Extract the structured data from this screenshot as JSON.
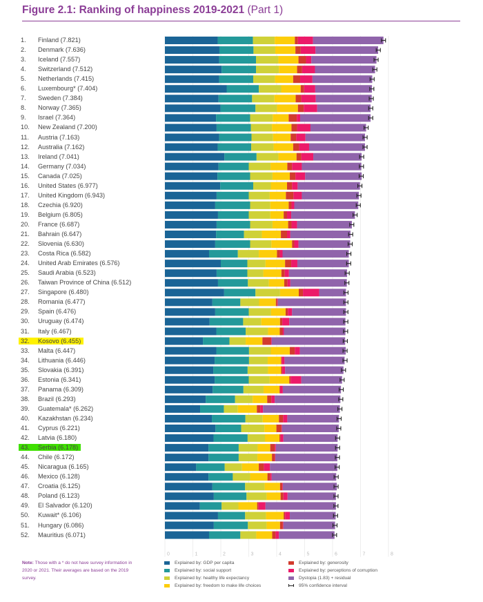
{
  "figure": {
    "title_bold": "Figure 2.1: Ranking of happiness 2019-2021",
    "title_part": "(Part 1)",
    "accent_color": "#8b3d96"
  },
  "note": {
    "label": "Note:",
    "text": "Those with a * do not have survey information in 2020 or 2021. Their averages are based on the 2019 survey."
  },
  "highlights": {
    "Kosovo": "#fff200",
    "Serbia": "#3fe000"
  },
  "chart_data": {
    "type": "bar",
    "orientation": "horizontal",
    "stacked": true,
    "title": "Figure 2.1: Ranking of happiness 2019-2021 (Part 1)",
    "xlabel": "",
    "ylabel": "",
    "xlim": [
      0,
      8
    ],
    "x_ticks": [
      "0",
      "1",
      "2",
      "3",
      "4",
      "5",
      "6",
      "7",
      "8"
    ],
    "grid": true,
    "legend_position": "bottom",
    "series": [
      {
        "name": "Explained by: GDP per capita",
        "color": "#1a6496"
      },
      {
        "name": "Explained by: social support",
        "color": "#23999a"
      },
      {
        "name": "Explained by: healthy life expectancy",
        "color": "#cfd138"
      },
      {
        "name": "Explained by: freedom to make life choices",
        "color": "#fdcd0a"
      },
      {
        "name": "Explained by: generosity",
        "color": "#d23b2d"
      },
      {
        "name": "Explained by: perceptions of corruption",
        "color": "#ec1a69"
      },
      {
        "name": "Dystopia (1.83) + residual",
        "color": "#9064ab"
      }
    ],
    "ci_legend": "95% confidence interval",
    "countries": [
      {
        "rank": "1.",
        "name": "Finland",
        "score": "7.821",
        "seg": [
          1.89,
          1.26,
          0.78,
          0.72,
          0.11,
          0.54,
          2.52
        ]
      },
      {
        "rank": "2.",
        "name": "Denmark",
        "score": "7.636",
        "seg": [
          1.95,
          1.22,
          0.78,
          0.72,
          0.19,
          0.53,
          2.24
        ]
      },
      {
        "rank": "3.",
        "name": "Iceland",
        "score": "7.557",
        "seg": [
          1.94,
          1.32,
          0.8,
          0.72,
          0.27,
          0.19,
          2.33
        ]
      },
      {
        "rank": "4.",
        "name": "Switzerland",
        "score": "7.512",
        "seg": [
          2.03,
          1.23,
          0.82,
          0.65,
          0.18,
          0.46,
          2.15
        ]
      },
      {
        "rank": "5.",
        "name": "Netherlands",
        "score": "7.415",
        "seg": [
          1.94,
          1.22,
          0.78,
          0.65,
          0.25,
          0.44,
          2.14
        ]
      },
      {
        "rank": "6.",
        "name": "Luxembourg*",
        "score": "7.404",
        "seg": [
          2.21,
          1.15,
          0.8,
          0.7,
          0.12,
          0.4,
          2.03
        ]
      },
      {
        "rank": "7.",
        "name": "Sweden",
        "score": "7.384",
        "seg": [
          1.92,
          1.2,
          0.8,
          0.76,
          0.2,
          0.52,
          2.0
        ]
      },
      {
        "rank": "8.",
        "name": "Norway",
        "score": "7.365",
        "seg": [
          1.99,
          1.25,
          0.77,
          0.75,
          0.21,
          0.48,
          1.91
        ]
      },
      {
        "rank": "9.",
        "name": "Israel",
        "score": "7.364",
        "seg": [
          1.83,
          1.22,
          0.81,
          0.57,
          0.29,
          0.12,
          2.52
        ]
      },
      {
        "rank": "10.",
        "name": "New Zealand",
        "score": "7.200",
        "seg": [
          1.85,
          1.23,
          0.75,
          0.7,
          0.2,
          0.48,
          1.99
        ]
      },
      {
        "rank": "11.",
        "name": "Austria",
        "score": "7.163",
        "seg": [
          1.94,
          1.16,
          0.77,
          0.63,
          0.2,
          0.33,
          2.13
        ]
      },
      {
        "rank": "12.",
        "name": "Australia",
        "score": "7.162",
        "seg": [
          1.89,
          1.2,
          0.8,
          0.7,
          0.21,
          0.36,
          2.0
        ]
      },
      {
        "rank": "13.",
        "name": "Ireland",
        "score": "7.041",
        "seg": [
          2.13,
          1.15,
          0.78,
          0.65,
          0.17,
          0.43,
          1.73
        ]
      },
      {
        "rank": "14.",
        "name": "Germany",
        "score": "7.034",
        "seg": [
          1.92,
          1.08,
          0.78,
          0.6,
          0.17,
          0.35,
          2.13
        ]
      },
      {
        "rank": "15.",
        "name": "Canada",
        "score": "7.025",
        "seg": [
          1.88,
          1.17,
          0.8,
          0.62,
          0.2,
          0.35,
          2.02
        ]
      },
      {
        "rank": "16.",
        "name": "United States",
        "score": "6.977",
        "seg": [
          1.98,
          1.18,
          0.63,
          0.58,
          0.18,
          0.2,
          2.23
        ]
      },
      {
        "rank": "17.",
        "name": "United Kingdom",
        "score": "6.943",
        "seg": [
          1.85,
          1.15,
          0.75,
          0.58,
          0.27,
          0.3,
          2.04
        ]
      },
      {
        "rank": "18.",
        "name": "Czechia",
        "score": "6.920",
        "seg": [
          1.8,
          1.25,
          0.72,
          0.66,
          0.1,
          0.1,
          2.29
        ]
      },
      {
        "rank": "19.",
        "name": "Belgium",
        "score": "6.805",
        "seg": [
          1.9,
          1.1,
          0.77,
          0.48,
          0.12,
          0.15,
          2.28
        ]
      },
      {
        "rank": "20.",
        "name": "France",
        "score": "6.687",
        "seg": [
          1.85,
          1.2,
          0.8,
          0.56,
          0.12,
          0.2,
          1.96
        ]
      },
      {
        "rank": "21.",
        "name": "Bahrain",
        "score": "6.647",
        "seg": [
          1.83,
          1.0,
          0.64,
          0.68,
          0.22,
          0.12,
          2.15
        ]
      },
      {
        "rank": "22.",
        "name": "Slovenia",
        "score": "6.630",
        "seg": [
          1.8,
          1.25,
          0.76,
          0.74,
          0.08,
          0.15,
          1.85
        ]
      },
      {
        "rank": "23.",
        "name": "Costa Rica",
        "score": "6.582",
        "seg": [
          1.58,
          1.03,
          0.75,
          0.65,
          0.1,
          0.1,
          2.37
        ]
      },
      {
        "rank": "24.",
        "name": "United Arab Emirates",
        "score": "6.576",
        "seg": [
          2.0,
          0.95,
          0.65,
          0.7,
          0.22,
          0.22,
          1.84
        ]
      },
      {
        "rank": "25.",
        "name": "Saudi Arabia",
        "score": "6.523",
        "seg": [
          1.85,
          1.1,
          0.57,
          0.65,
          0.12,
          0.15,
          2.08
        ]
      },
      {
        "rank": "26.",
        "name": "Taiwan Province of China",
        "score": "6.512",
        "seg": [
          1.9,
          1.07,
          0.75,
          0.55,
          0.12,
          0.1,
          2.02
        ]
      },
      {
        "rank": "27.",
        "name": "Singapore",
        "score": "6.480",
        "seg": [
          2.12,
          1.12,
          0.88,
          0.67,
          0.15,
          0.58,
          0.96
        ]
      },
      {
        "rank": "28.",
        "name": "Romania",
        "score": "6.477",
        "seg": [
          1.7,
          1.0,
          0.67,
          0.6,
          0.05,
          0.02,
          2.44
        ]
      },
      {
        "rank": "29.",
        "name": "Spain",
        "score": "6.476",
        "seg": [
          1.8,
          1.2,
          0.8,
          0.52,
          0.08,
          0.15,
          1.93
        ]
      },
      {
        "rank": "30.",
        "name": "Uruguay",
        "score": "6.474",
        "seg": [
          1.6,
          1.2,
          0.65,
          0.67,
          0.08,
          0.25,
          2.01
        ]
      },
      {
        "rank": "31.",
        "name": "Italy",
        "score": "6.467",
        "seg": [
          1.84,
          1.05,
          0.8,
          0.42,
          0.1,
          0.05,
          2.2
        ]
      },
      {
        "rank": "32.",
        "name": "Kosovo",
        "score": "6.455",
        "seg": [
          1.36,
          0.95,
          0.58,
          0.6,
          0.3,
          0.03,
          2.63
        ]
      },
      {
        "rank": "33.",
        "name": "Malta",
        "score": "6.447",
        "seg": [
          1.84,
          1.17,
          0.78,
          0.68,
          0.18,
          0.18,
          1.64
        ]
      },
      {
        "rank": "34.",
        "name": "Lithuania",
        "score": "6.446",
        "seg": [
          1.78,
          1.23,
          0.67,
          0.48,
          0.02,
          0.1,
          2.15
        ]
      },
      {
        "rank": "35.",
        "name": "Slovakia",
        "score": "6.391",
        "seg": [
          1.73,
          1.23,
          0.73,
          0.47,
          0.04,
          0.1,
          2.09
        ]
      },
      {
        "rank": "36.",
        "name": "Estonia",
        "score": "6.341",
        "seg": [
          1.78,
          1.22,
          0.75,
          0.7,
          0.05,
          0.38,
          1.46
        ]
      },
      {
        "rank": "37.",
        "name": "Panama",
        "score": "6.309",
        "seg": [
          1.71,
          1.1,
          0.72,
          0.57,
          0.02,
          0.1,
          2.08
        ]
      },
      {
        "rank": "38.",
        "name": "Brazil",
        "score": "6.293",
        "seg": [
          1.46,
          1.05,
          0.63,
          0.52,
          0.15,
          0.12,
          2.35
        ]
      },
      {
        "rank": "39.",
        "name": "Guatemala*",
        "score": "6.262",
        "seg": [
          1.26,
          0.85,
          0.5,
          0.68,
          0.12,
          0.1,
          2.75
        ]
      },
      {
        "rank": "40.",
        "name": "Kazakhstan",
        "score": "6.234",
        "seg": [
          1.68,
          1.2,
          0.62,
          0.58,
          0.15,
          0.15,
          1.85
        ]
      },
      {
        "rank": "41.",
        "name": "Cyprus",
        "score": "6.221",
        "seg": [
          1.81,
          0.92,
          0.83,
          0.43,
          0.18,
          0.02,
          2.03
        ]
      },
      {
        "rank": "42.",
        "name": "Latvia",
        "score": "6.180",
        "seg": [
          1.74,
          1.22,
          0.62,
          0.52,
          0.04,
          0.1,
          1.94
        ]
      },
      {
        "rank": "43.",
        "name": "Serbia",
        "score": "6.178",
        "seg": [
          1.56,
          1.08,
          0.68,
          0.45,
          0.16,
          0.04,
          2.21
        ]
      },
      {
        "rank": "44.",
        "name": "Chile",
        "score": "6.172",
        "seg": [
          1.56,
          1.08,
          0.67,
          0.52,
          0.1,
          0.02,
          2.22
        ]
      },
      {
        "rank": "45.",
        "name": "Nicaragua",
        "score": "6.165",
        "seg": [
          1.12,
          1.02,
          0.62,
          0.6,
          0.18,
          0.22,
          2.41
        ]
      },
      {
        "rank": "46.",
        "name": "Mexico",
        "score": "6.128",
        "seg": [
          1.56,
          0.87,
          0.62,
          0.62,
          0.1,
          0.05,
          2.31
        ]
      },
      {
        "rank": "47.",
        "name": "Croatia",
        "score": "6.125",
        "seg": [
          1.7,
          1.17,
          0.7,
          0.55,
          0.08,
          0.02,
          1.93
        ]
      },
      {
        "rank": "48.",
        "name": "Poland",
        "score": "6.123",
        "seg": [
          1.75,
          1.17,
          0.72,
          0.5,
          0.1,
          0.15,
          1.73
        ]
      },
      {
        "rank": "49.",
        "name": "El Salvador",
        "score": "6.120",
        "seg": [
          1.25,
          0.78,
          0.6,
          0.67,
          0.05,
          0.25,
          2.52
        ]
      },
      {
        "rank": "50.",
        "name": "Kuwait*",
        "score": "6.106",
        "seg": [
          1.9,
          0.97,
          0.75,
          0.63,
          0.05,
          0.17,
          1.64
        ]
      },
      {
        "rank": "51.",
        "name": "Hungary",
        "score": "6.086",
        "seg": [
          1.75,
          1.22,
          0.67,
          0.48,
          0.1,
          0.02,
          1.85
        ]
      },
      {
        "rank": "52.",
        "name": "Mauritius",
        "score": "6.071",
        "seg": [
          1.58,
          1.12,
          0.57,
          0.57,
          0.12,
          0.12,
          1.99
        ]
      }
    ]
  }
}
